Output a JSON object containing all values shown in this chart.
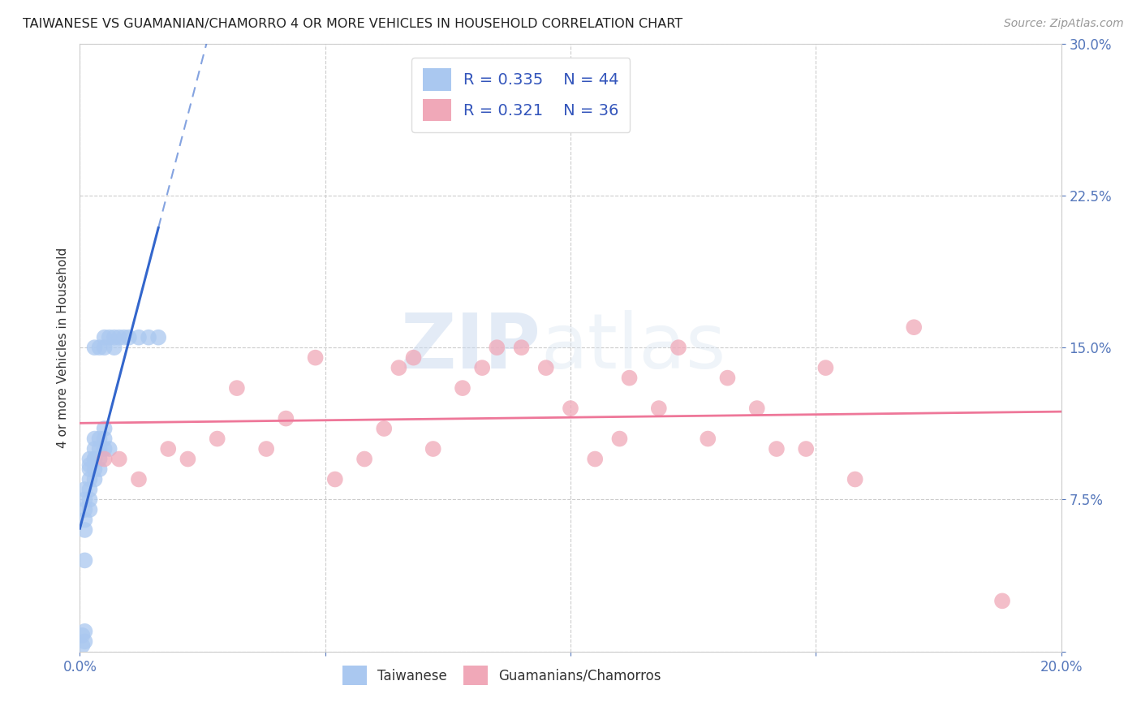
{
  "title": "TAIWANESE VS GUAMANIAN/CHAMORRO 4 OR MORE VEHICLES IN HOUSEHOLD CORRELATION CHART",
  "source": "Source: ZipAtlas.com",
  "ylabel": "4 or more Vehicles in Household",
  "xlim": [
    0.0,
    0.2
  ],
  "ylim": [
    0.0,
    0.3
  ],
  "R_taiwanese": 0.335,
  "N_taiwanese": 44,
  "R_guamanian": 0.321,
  "N_guamanian": 36,
  "color_taiwanese": "#aac8f0",
  "color_guamanian": "#f0a8b8",
  "color_taiwanese_line": "#3366cc",
  "color_guamanian_line": "#ee7799",
  "watermark_zip": "ZIP",
  "watermark_atlas": "atlas",
  "taiwanese_x": [
    0.0005,
    0.0005,
    0.001,
    0.001,
    0.001,
    0.001,
    0.001,
    0.001,
    0.001,
    0.001,
    0.002,
    0.002,
    0.002,
    0.002,
    0.002,
    0.002,
    0.002,
    0.003,
    0.003,
    0.003,
    0.003,
    0.003,
    0.003,
    0.003,
    0.004,
    0.004,
    0.004,
    0.004,
    0.004,
    0.005,
    0.005,
    0.005,
    0.005,
    0.005,
    0.006,
    0.006,
    0.007,
    0.007,
    0.008,
    0.009,
    0.01,
    0.012,
    0.014,
    0.016
  ],
  "taiwanese_y": [
    0.003,
    0.008,
    0.005,
    0.01,
    0.045,
    0.06,
    0.065,
    0.07,
    0.075,
    0.08,
    0.07,
    0.075,
    0.08,
    0.085,
    0.09,
    0.092,
    0.095,
    0.085,
    0.09,
    0.095,
    0.095,
    0.1,
    0.105,
    0.15,
    0.09,
    0.095,
    0.1,
    0.105,
    0.15,
    0.1,
    0.105,
    0.11,
    0.15,
    0.155,
    0.1,
    0.155,
    0.15,
    0.155,
    0.155,
    0.155,
    0.155,
    0.155,
    0.155,
    0.155
  ],
  "guamanian_x": [
    0.005,
    0.008,
    0.012,
    0.018,
    0.022,
    0.028,
    0.032,
    0.038,
    0.042,
    0.048,
    0.052,
    0.058,
    0.062,
    0.065,
    0.068,
    0.072,
    0.078,
    0.082,
    0.085,
    0.09,
    0.095,
    0.1,
    0.105,
    0.11,
    0.112,
    0.118,
    0.122,
    0.128,
    0.132,
    0.138,
    0.142,
    0.148,
    0.152,
    0.158,
    0.17,
    0.188
  ],
  "guamanian_y": [
    0.095,
    0.095,
    0.085,
    0.1,
    0.095,
    0.105,
    0.13,
    0.1,
    0.115,
    0.145,
    0.085,
    0.095,
    0.11,
    0.14,
    0.145,
    0.1,
    0.13,
    0.14,
    0.15,
    0.15,
    0.14,
    0.12,
    0.095,
    0.105,
    0.135,
    0.12,
    0.15,
    0.105,
    0.135,
    0.12,
    0.1,
    0.1,
    0.14,
    0.085,
    0.16,
    0.025
  ]
}
